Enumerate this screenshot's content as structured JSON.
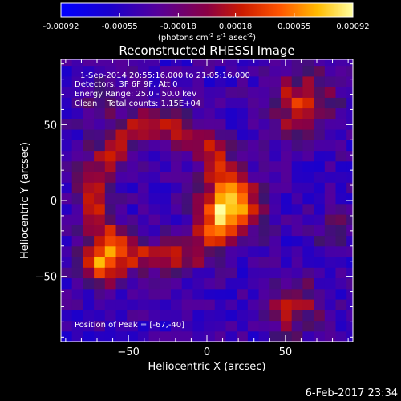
{
  "chart_data": {
    "type": "heatmap",
    "title": "Reconstructed RHESSI Image",
    "xlabel": "Heliocentric X (arcsec)",
    "ylabel": "Heliocentric Y (arcsec)",
    "xlim": [
      -93,
      93
    ],
    "ylim": [
      -93,
      93
    ],
    "x_ticks": [
      {
        "value": -50,
        "label": "−50"
      },
      {
        "value": 0,
        "label": "0"
      },
      {
        "value": 50,
        "label": "50"
      }
    ],
    "y_ticks": [
      {
        "value": -50,
        "label": "−50"
      },
      {
        "value": 0,
        "label": "0"
      },
      {
        "value": 50,
        "label": "50"
      }
    ],
    "colorbar": {
      "range": [
        -0.00092,
        0.00092
      ],
      "tick_labels": [
        "-0.00092",
        "-0.00055",
        "-0.00018",
        "0.00018",
        "0.00055",
        "0.00092"
      ],
      "units_line1": "(photons cm",
      "units_exp1": "-2",
      "units_line2": " s",
      "units_exp2": "-1",
      "units_line3": " asec",
      "units_exp3": "-2",
      "units_close": ")"
    },
    "annotations": {
      "time_range": "1-Sep-2014 20:55:16.000 to 21:05:16.000",
      "detectors": "Detectors: 3F 6F 9F, Att 0",
      "energy": "Energy Range: 25.0 - 50.0 keV",
      "clean": "Clean    Total counts: 1.15E+04",
      "peak": "Position of Peak = [-67,-40]"
    },
    "peak_position": [
      -67,
      -40
    ],
    "features": [
      {
        "label": "ring",
        "x": -30,
        "y": 5,
        "inner_radius": 30,
        "outer_radius": 55,
        "intensity": 0.00055
      },
      {
        "label": "blob",
        "x": 15,
        "y": -5,
        "radius": 20,
        "intensity": 0.0008
      },
      {
        "label": "arc",
        "x": 60,
        "y": 65,
        "radius": 22,
        "intensity": 0.0007
      },
      {
        "label": "blob",
        "x": -67,
        "y": -40,
        "radius": 15,
        "intensity": 0.00092
      },
      {
        "label": "blob",
        "x": 55,
        "y": -70,
        "radius": 18,
        "intensity": 0.0006
      },
      {
        "label": "blob",
        "x": 80,
        "y": -20,
        "radius": 12,
        "intensity": 0.0004
      },
      {
        "label": "blob",
        "x": -65,
        "y": 65,
        "radius": 18,
        "intensity": 0.0003
      }
    ]
  },
  "footer": {
    "date": "6-Feb-2017 23:34"
  },
  "colors": {
    "background": "#000000",
    "foreground": "#ffffff"
  }
}
